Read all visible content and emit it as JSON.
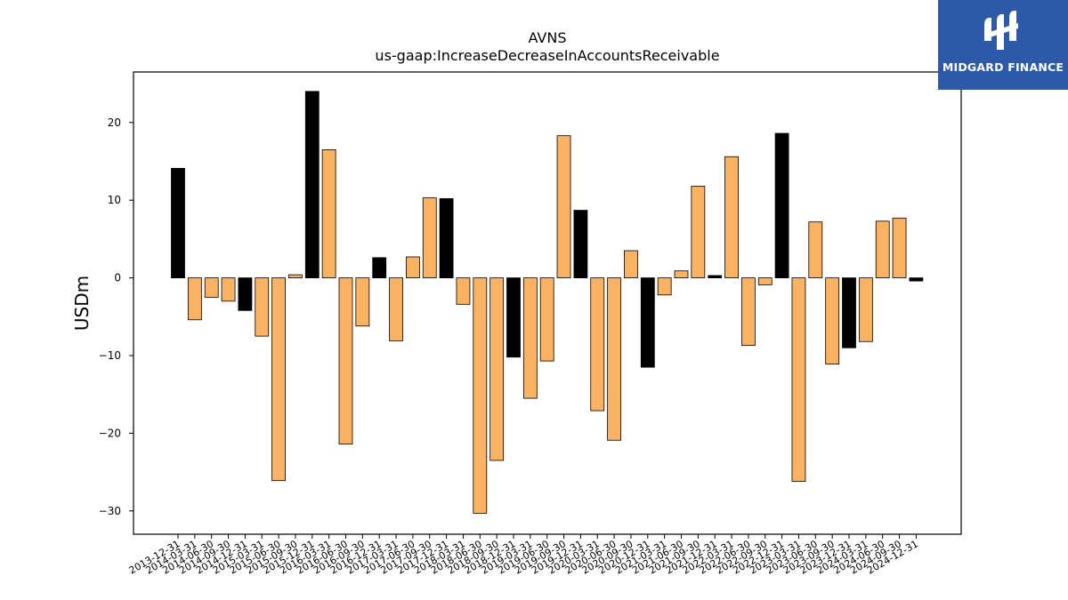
{
  "chart_data": {
    "type": "bar",
    "title": "AVNS",
    "subtitle": "us-gaap:IncreaseDecreaseInAccountsReceivable",
    "xlabel": "",
    "ylabel": "USDm",
    "ylim": [
      -33,
      26.5
    ],
    "yticks": [
      -30,
      -20,
      -10,
      0,
      10,
      20
    ],
    "grid": false,
    "colors": {
      "quarterly": "#fbb263",
      "annual": "#000000",
      "edge": "#000000"
    },
    "categories": [
      "2013-12-31",
      "2014-03-31",
      "2014-06-30",
      "2014-09-30",
      "2014-12-31",
      "2015-03-31",
      "2015-06-30",
      "2015-09-30",
      "2015-12-31",
      "2016-03-31",
      "2016-06-30",
      "2016-09-30",
      "2016-12-31",
      "2017-03-31",
      "2017-06-30",
      "2017-09-30",
      "2017-12-31",
      "2018-03-31",
      "2018-06-30",
      "2018-09-30",
      "2018-12-31",
      "2019-03-31",
      "2019-06-30",
      "2019-09-30",
      "2019-12-31",
      "2020-03-31",
      "2020-06-30",
      "2020-09-30",
      "2020-12-31",
      "2021-03-31",
      "2021-06-30",
      "2021-09-30",
      "2021-12-31",
      "2022-03-31",
      "2022-06-30",
      "2022-09-30",
      "2022-12-31",
      "2023-03-31",
      "2023-06-30",
      "2023-09-30",
      "2023-12-31",
      "2024-03-31",
      "2024-06-30",
      "2024-09-30",
      "2024-12-31"
    ],
    "values": [
      14.1,
      -5.4,
      -2.5,
      -3.0,
      -4.2,
      -7.5,
      -26.1,
      0.4,
      24.0,
      16.5,
      -21.4,
      -6.2,
      2.6,
      -8.1,
      2.7,
      10.3,
      10.2,
      -3.4,
      -30.3,
      -23.5,
      -10.2,
      -15.5,
      -10.7,
      18.3,
      8.7,
      -17.1,
      -20.9,
      3.5,
      -11.5,
      -2.2,
      0.9,
      11.8,
      0.3,
      15.6,
      -8.7,
      -0.9,
      18.6,
      -26.2,
      7.2,
      -11.1,
      -9.0,
      -8.2,
      7.3,
      7.7,
      -0.4
    ],
    "annual": [
      true,
      false,
      false,
      false,
      true,
      false,
      false,
      false,
      true,
      false,
      false,
      false,
      true,
      false,
      false,
      false,
      true,
      false,
      false,
      false,
      true,
      false,
      false,
      false,
      true,
      false,
      false,
      false,
      true,
      false,
      false,
      false,
      true,
      false,
      false,
      false,
      true,
      false,
      false,
      false,
      true,
      false,
      false,
      false,
      true
    ]
  },
  "logo": {
    "text": "MIDGARD FINANCE",
    "icon": "midgard-logo-icon"
  }
}
